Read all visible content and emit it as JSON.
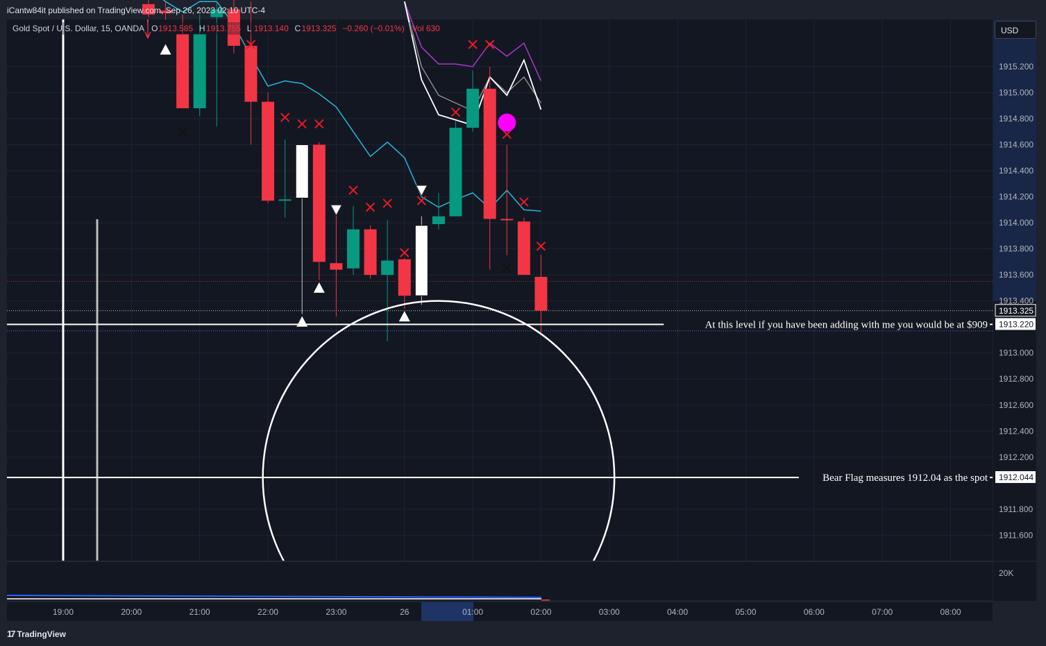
{
  "header": {
    "published": "iCantw84it published on TradingView.com, Sep 26, 2023 02:10 UTC-4"
  },
  "footer": {
    "logo_text": "TradingView"
  },
  "currency_button": "USD",
  "colors": {
    "background": "#131722",
    "up_candle": "#089981",
    "down_candle": "#f23645",
    "highlight_candle": "#ffffff",
    "cyan_line": "#29b6d8",
    "purple_line": "#a939c6",
    "x_marker": "#e81b23",
    "magenta_dot": "#ff00ff"
  },
  "chart_data": {
    "type": "candlestick",
    "title": "Gold Spot / U.S. Dollar, 15, OANDA",
    "legend_ohlc": {
      "O": "1913.585",
      "H": "1913.755",
      "L": "1913.140",
      "C": "1913.325",
      "change": "−0.260 (−0.01%)",
      "vol": "Vol 630"
    },
    "x_tick_labels": [
      "19:00",
      "20:00",
      "21:00",
      "22:00",
      "23:00",
      "26",
      "01:00",
      "02:00",
      "03:00",
      "04:00",
      "05:00",
      "06:00",
      "07:00",
      "08:00"
    ],
    "y_tick_labels": [
      "1915.200",
      "1915.000",
      "1914.800",
      "1914.600",
      "1914.400",
      "1914.200",
      "1914.000",
      "1913.800",
      "1913.600",
      "1913.400",
      "1913.000",
      "1912.800",
      "1912.600",
      "1912.400",
      "1912.200",
      "1911.800",
      "1911.600"
    ],
    "price_tags": [
      {
        "label": "1913.325",
        "value": 1913.325,
        "style": "dark"
      },
      {
        "label": "1913.220",
        "value": 1913.22,
        "style": "light"
      },
      {
        "label": "1912.044",
        "value": 1912.044,
        "style": "light"
      }
    ],
    "volume_axis_label": "20K",
    "ylim": [
      1911.39,
      1915.7
    ],
    "candles": [
      {
        "t": "20:15",
        "o": 1915.68,
        "h": 1915.8,
        "l": 1915.58,
        "c": 1915.6,
        "kind": "down"
      },
      {
        "t": "20:30",
        "o": 1915.63,
        "h": 1915.7,
        "l": 1915.56,
        "c": 1915.61,
        "kind": "down"
      },
      {
        "t": "20:45",
        "o": 1915.45,
        "h": 1915.6,
        "l": 1914.92,
        "c": 1914.88,
        "kind": "down"
      },
      {
        "t": "21:00",
        "o": 1914.88,
        "h": 1915.6,
        "l": 1914.82,
        "c": 1915.45,
        "kind": "up"
      },
      {
        "t": "21:15",
        "o": 1915.58,
        "h": 1915.7,
        "l": 1914.74,
        "c": 1915.64,
        "kind": "up"
      },
      {
        "t": "21:30",
        "o": 1915.64,
        "h": 1915.72,
        "l": 1915.3,
        "c": 1915.36,
        "kind": "down"
      },
      {
        "t": "21:45",
        "o": 1915.36,
        "h": 1915.7,
        "l": 1914.6,
        "c": 1914.93,
        "kind": "down"
      },
      {
        "t": "22:00",
        "o": 1914.93,
        "h": 1915.0,
        "l": 1914.15,
        "c": 1914.17,
        "kind": "down"
      },
      {
        "t": "22:15",
        "o": 1914.17,
        "h": 1914.64,
        "l": 1914.04,
        "c": 1914.18,
        "kind": "up"
      },
      {
        "t": "22:30",
        "o": 1914.19,
        "h": 1914.6,
        "l": 1913.3,
        "c": 1914.6,
        "kind": "highlight"
      },
      {
        "t": "22:45",
        "o": 1914.6,
        "h": 1914.62,
        "l": 1913.56,
        "c": 1913.7,
        "kind": "down"
      },
      {
        "t": "23:00",
        "o": 1913.69,
        "h": 1914.1,
        "l": 1913.28,
        "c": 1913.64,
        "kind": "down"
      },
      {
        "t": "23:15",
        "o": 1913.65,
        "h": 1914.13,
        "l": 1913.6,
        "c": 1913.95,
        "kind": "up"
      },
      {
        "t": "23:30",
        "o": 1913.95,
        "h": 1913.98,
        "l": 1913.57,
        "c": 1913.6,
        "kind": "down"
      },
      {
        "t": "23:45",
        "o": 1913.6,
        "h": 1914.02,
        "l": 1913.09,
        "c": 1913.71,
        "kind": "up"
      },
      {
        "t": "00:00",
        "o": 1913.72,
        "h": 1913.73,
        "l": 1913.34,
        "c": 1913.44,
        "kind": "down"
      },
      {
        "t": "00:15",
        "o": 1913.44,
        "h": 1914.05,
        "l": 1913.37,
        "c": 1913.98,
        "kind": "highlight"
      },
      {
        "t": "00:30",
        "o": 1913.99,
        "h": 1914.23,
        "l": 1913.95,
        "c": 1914.05,
        "kind": "up"
      },
      {
        "t": "00:45",
        "o": 1914.05,
        "h": 1914.78,
        "l": 1914.05,
        "c": 1914.73,
        "kind": "up"
      },
      {
        "t": "01:00",
        "o": 1914.73,
        "h": 1915.17,
        "l": 1914.7,
        "c": 1915.03,
        "kind": "up"
      },
      {
        "t": "01:15",
        "o": 1915.03,
        "h": 1915.2,
        "l": 1913.64,
        "c": 1914.03,
        "kind": "down"
      },
      {
        "t": "01:30",
        "o": 1914.03,
        "h": 1914.6,
        "l": 1913.75,
        "c": 1914.02,
        "kind": "down"
      },
      {
        "t": "01:45",
        "o": 1914.01,
        "h": 1914.04,
        "l": 1913.6,
        "c": 1913.6,
        "kind": "down"
      },
      {
        "t": "02:00",
        "o": 1913.585,
        "h": 1913.755,
        "l": 1913.14,
        "c": 1913.325,
        "kind": "down"
      }
    ],
    "cyan_line": [
      [
        1,
        1915.8
      ],
      [
        2,
        1915.7
      ],
      [
        3,
        1915.62
      ],
      [
        4,
        1915.7
      ],
      [
        5,
        1915.7
      ],
      [
        6,
        1915.52
      ],
      [
        7,
        1915.28
      ],
      [
        8,
        1915.05
      ],
      [
        9,
        1915.09
      ],
      [
        10,
        1915.07
      ],
      [
        11,
        1914.99
      ],
      [
        12,
        1914.89
      ],
      [
        13,
        1914.7
      ],
      [
        14,
        1914.51
      ],
      [
        15,
        1914.62
      ],
      [
        16,
        1914.5
      ],
      [
        17,
        1914.2
      ],
      [
        18,
        1914.12
      ],
      [
        19,
        1914.18
      ],
      [
        20,
        1914.23
      ],
      [
        21,
        1914.11
      ],
      [
        22,
        1914.25
      ],
      [
        23,
        1914.1
      ],
      [
        24,
        1914.09
      ]
    ],
    "white_line": [
      [
        16,
        1915.7
      ],
      [
        17,
        1915.1
      ],
      [
        18,
        1914.83
      ],
      [
        19,
        1914.79
      ],
      [
        20,
        1914.75
      ],
      [
        21,
        1915.12
      ],
      [
        22,
        1914.98
      ],
      [
        23,
        1915.25
      ],
      [
        24,
        1914.87
      ]
    ],
    "gray_line": [
      [
        16,
        1915.7
      ],
      [
        17,
        1915.2
      ],
      [
        18,
        1914.98
      ],
      [
        19,
        1914.92
      ],
      [
        20,
        1914.86
      ],
      [
        21,
        1915.12
      ],
      [
        22,
        1915.0
      ],
      [
        23,
        1915.12
      ],
      [
        24,
        1914.92
      ]
    ],
    "purple_line": [
      [
        16,
        1915.7
      ],
      [
        17,
        1915.35
      ],
      [
        18,
        1915.22
      ],
      [
        19,
        1915.22
      ],
      [
        20,
        1915.2
      ],
      [
        21,
        1915.38
      ],
      [
        22,
        1915.28
      ],
      [
        23,
        1915.38
      ],
      [
        24,
        1915.09
      ]
    ],
    "down_x_markers": [
      [
        7,
        1915.37
      ],
      [
        9,
        1914.81
      ],
      [
        10,
        1914.76
      ],
      [
        11,
        1914.76
      ],
      [
        13,
        1914.25
      ],
      [
        14,
        1914.12
      ],
      [
        15,
        1914.15
      ],
      [
        16,
        1913.77
      ],
      [
        17,
        1914.17
      ],
      [
        19,
        1914.85
      ],
      [
        20,
        1915.37
      ],
      [
        21,
        1915.37
      ],
      [
        22,
        1914.68
      ],
      [
        23,
        1914.16
      ],
      [
        24,
        1913.82
      ]
    ],
    "black_x_markers": [
      [
        3,
        1914.7
      ],
      [
        22,
        1913.65
      ]
    ],
    "up_triangles": [
      [
        2,
        1915.33
      ],
      [
        10,
        1913.24
      ],
      [
        11,
        1913.5
      ],
      [
        16,
        1913.28
      ]
    ],
    "down_triangles": [
      [
        12,
        1914.1
      ],
      [
        17,
        1914.25
      ]
    ],
    "magenta_dot": [
      22,
      1914.77
    ],
    "annotations": [
      {
        "text": "At this level if you have been adding with me you would be at $909",
        "price": 1913.22
      },
      {
        "text": "Bear Flag measures 1912.04 as the spot",
        "price": 1912.044
      }
    ],
    "circle": {
      "center_index": 18,
      "center_price": 1912.044,
      "radius_hours": 2.575,
      "top_price": 1913.4
    }
  }
}
